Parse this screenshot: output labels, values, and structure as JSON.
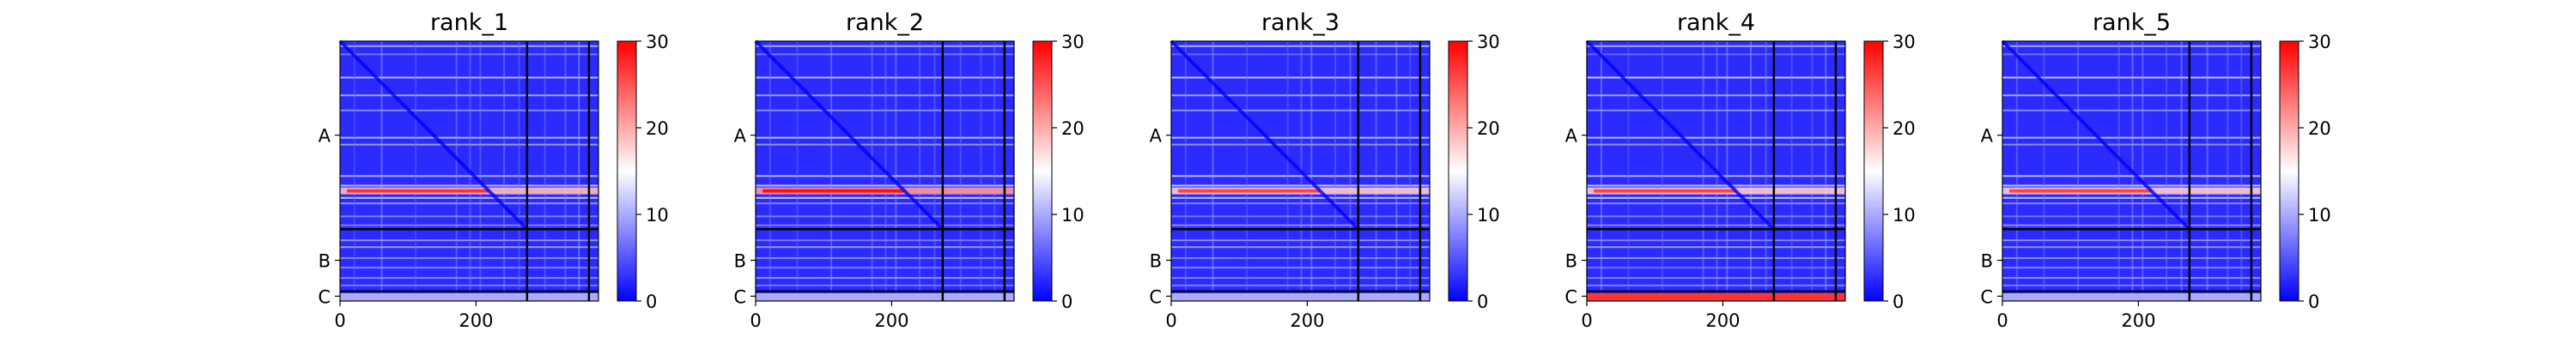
{
  "figure": {
    "panel_count": 5
  },
  "colorbar": {
    "colormap": "bwr",
    "colors": {
      "low": "#0000ff",
      "mid": "#ffffff",
      "high": "#ff0000"
    },
    "ticks": [
      "0",
      "10",
      "20",
      "30"
    ],
    "range": [
      0,
      30
    ]
  },
  "chart_data": [
    {
      "type": "heatmap",
      "title": "rank_1",
      "x_range": [
        0,
        380
      ],
      "y_range": [
        0,
        380
      ],
      "x_ticks": [
        0,
        200
      ],
      "chain_labels": [
        "A",
        "B",
        "C"
      ],
      "chain_boundaries": [
        275,
        366
      ],
      "values_range": [
        0,
        30
      ],
      "bright_band_row": 219,
      "bright_band_level": 27,
      "chain_c_rows_level": 10
    },
    {
      "type": "heatmap",
      "title": "rank_2",
      "x_range": [
        0,
        380
      ],
      "y_range": [
        0,
        380
      ],
      "x_ticks": [
        0,
        200
      ],
      "chain_labels": [
        "A",
        "B",
        "C"
      ],
      "chain_boundaries": [
        275,
        366
      ],
      "values_range": [
        0,
        30
      ],
      "bright_band_row": 219,
      "bright_band_level": 29,
      "chain_c_rows_level": 10
    },
    {
      "type": "heatmap",
      "title": "rank_3",
      "x_range": [
        0,
        380
      ],
      "y_range": [
        0,
        380
      ],
      "x_ticks": [
        0,
        200
      ],
      "chain_labels": [
        "A",
        "B",
        "C"
      ],
      "chain_boundaries": [
        275,
        366
      ],
      "values_range": [
        0,
        30
      ],
      "bright_band_row": 219,
      "bright_band_level": 26,
      "chain_c_rows_level": 10
    },
    {
      "type": "heatmap",
      "title": "rank_4",
      "x_range": [
        0,
        380
      ],
      "y_range": [
        0,
        380
      ],
      "x_ticks": [
        0,
        200
      ],
      "chain_labels": [
        "A",
        "B",
        "C"
      ],
      "chain_boundaries": [
        275,
        366
      ],
      "values_range": [
        0,
        30
      ],
      "bright_band_row": 219,
      "bright_band_level": 26,
      "chain_c_rows_level": 27
    },
    {
      "type": "heatmap",
      "title": "rank_5",
      "x_range": [
        0,
        380
      ],
      "y_range": [
        0,
        380
      ],
      "x_ticks": [
        0,
        200
      ],
      "chain_labels": [
        "A",
        "B",
        "C"
      ],
      "chain_boundaries": [
        275,
        366
      ],
      "values_range": [
        0,
        30
      ],
      "bright_band_row": 219,
      "bright_band_level": 26,
      "chain_c_rows_level": 10
    }
  ]
}
